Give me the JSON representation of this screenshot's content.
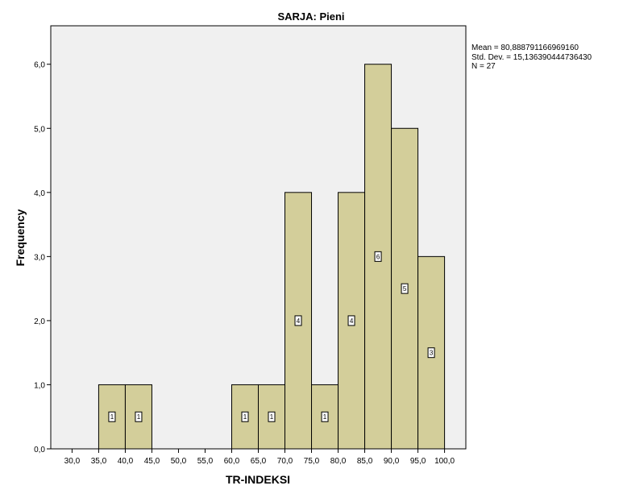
{
  "chart_data": {
    "type": "bar",
    "title": "SARJA: Pieni",
    "xlabel": "TR-INDEKSI",
    "ylabel": "Frequency",
    "x_ticks": [
      "30,0",
      "35,0",
      "40,0",
      "45,0",
      "50,0",
      "55,0",
      "60,0",
      "65,0",
      "70,0",
      "75,0",
      "80,0",
      "85,0",
      "90,0",
      "95,0",
      "100,0"
    ],
    "y_ticks": [
      "0,0",
      "1,0",
      "2,0",
      "3,0",
      "4,0",
      "5,0",
      "6,0"
    ],
    "x_range": [
      26,
      104
    ],
    "ylim": [
      0,
      6.6
    ],
    "bin_width": 5,
    "bins": [
      {
        "start": 35,
        "value": 1,
        "label": "1"
      },
      {
        "start": 40,
        "value": 1,
        "label": "1"
      },
      {
        "start": 60,
        "value": 1,
        "label": "1"
      },
      {
        "start": 65,
        "value": 1,
        "label": "1"
      },
      {
        "start": 70,
        "value": 4,
        "label": "4"
      },
      {
        "start": 75,
        "value": 1,
        "label": "1"
      },
      {
        "start": 80,
        "value": 4,
        "label": "4"
      },
      {
        "start": 85,
        "value": 6,
        "label": "6"
      },
      {
        "start": 90,
        "value": 5,
        "label": "5"
      },
      {
        "start": 95,
        "value": 3,
        "label": "3"
      }
    ],
    "stats": [
      "Mean = 80,888791166969160",
      "Std. Dev. = 15,136390444736430",
      "N = 27"
    ],
    "colors": {
      "bar_fill": "#d3ce9a",
      "bar_stroke": "#000000",
      "plot_background": "#f0f0f0"
    },
    "grid": false,
    "legend": "none"
  }
}
